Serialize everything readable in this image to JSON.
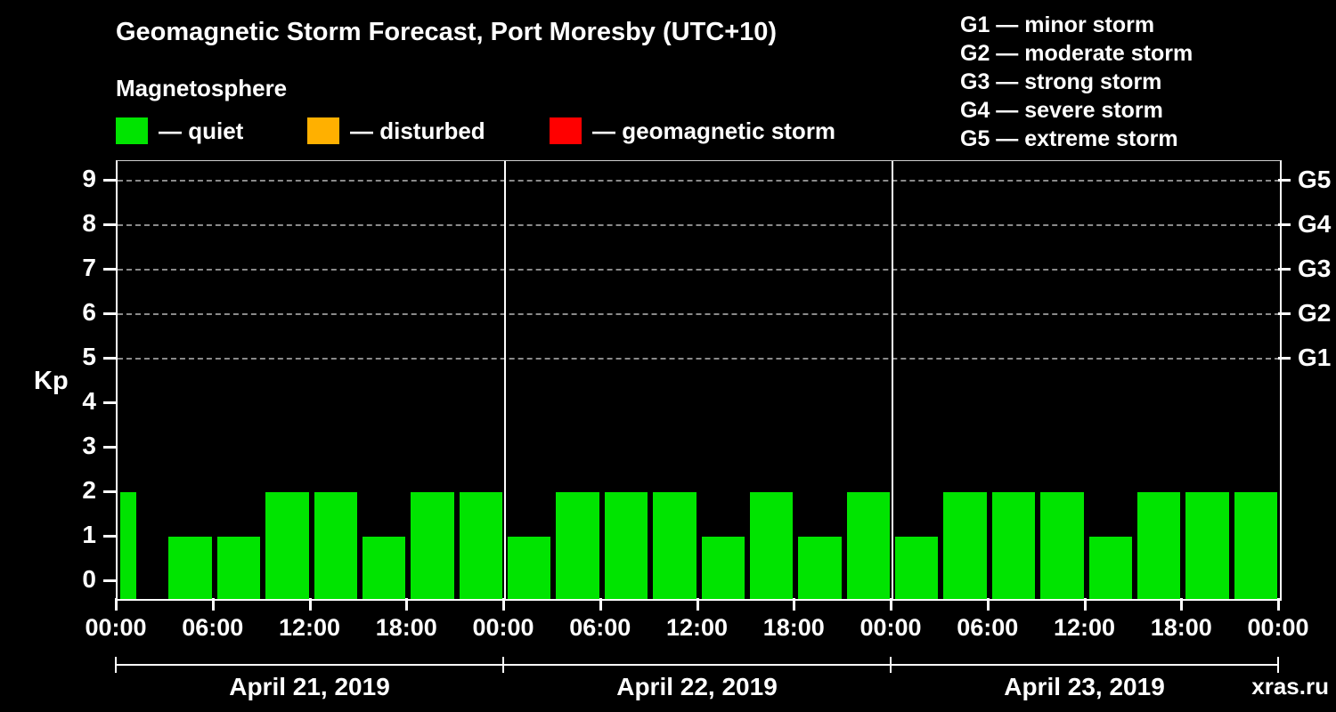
{
  "title": "Geomagnetic Storm Forecast, Port Moresby (UTC+10)",
  "subtitle": "Magnetosphere",
  "legend": {
    "quiet": {
      "label": "— quiet",
      "color": "#00e400"
    },
    "disturbed": {
      "label": "— disturbed",
      "color": "#ffb000"
    },
    "storm": {
      "label": "— geomagnetic storm",
      "color": "#ff0000"
    }
  },
  "g_scale": [
    {
      "code": "G1",
      "legend": "G1 — minor storm",
      "kp": 5
    },
    {
      "code": "G2",
      "legend": "G2 — moderate storm",
      "kp": 6
    },
    {
      "code": "G3",
      "legend": "G3 — strong storm",
      "kp": 7
    },
    {
      "code": "G4",
      "legend": "G4 — severe storm",
      "kp": 8
    },
    {
      "code": "G5",
      "legend": "G5 — extreme storm",
      "kp": 9
    }
  ],
  "chart_data": {
    "type": "bar",
    "title": "Geomagnetic Storm Forecast, Port Moresby (UTC+10)",
    "ylabel": "Kp",
    "ylim": [
      0,
      9
    ],
    "y_ticks": [
      0,
      1,
      2,
      3,
      4,
      5,
      6,
      7,
      8,
      9
    ],
    "x_tick_labels": [
      "00:00",
      "06:00",
      "12:00",
      "18:00",
      "00:00",
      "06:00",
      "12:00",
      "18:00",
      "00:00",
      "06:00",
      "12:00",
      "18:00",
      "00:00"
    ],
    "bar_color": "#00e400",
    "kp_interval_hours": 3,
    "grid": "dashed horizontal gridlines at storm thresholds Kp 5-9 (G1-G5), legend top area, vertical white lines at day boundaries",
    "days": [
      {
        "date": "April 21, 2019",
        "values": [
          2,
          1,
          1,
          2,
          2,
          1,
          2,
          2
        ]
      },
      {
        "date": "April 22, 2019",
        "values": [
          1,
          2,
          2,
          2,
          1,
          2,
          1,
          2
        ]
      },
      {
        "date": "April 23, 2019",
        "values": [
          1,
          2,
          2,
          2,
          1,
          2,
          2,
          2
        ]
      }
    ]
  },
  "watermark": "xras.ru"
}
